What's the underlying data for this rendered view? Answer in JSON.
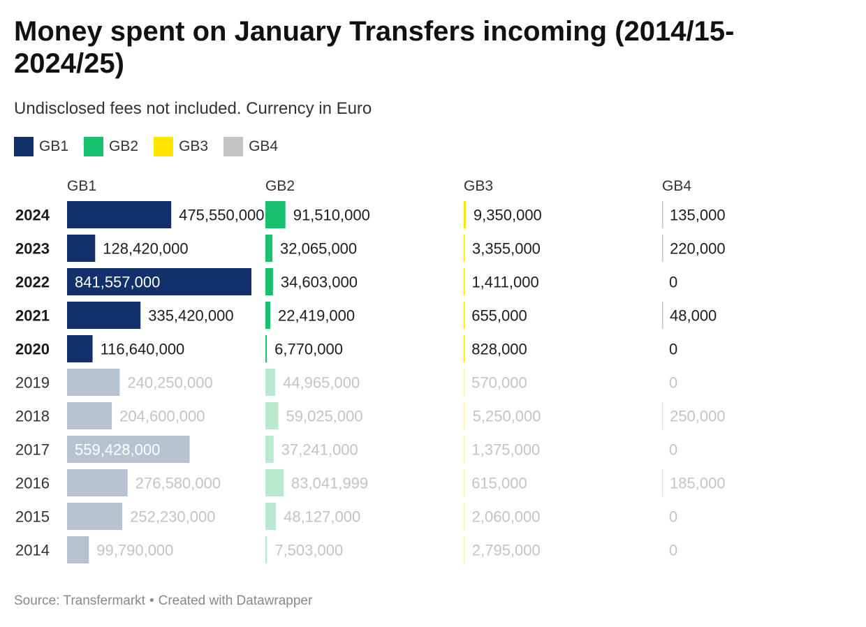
{
  "title": "Money spent on January Transfers incoming (2014/15-2024/25)",
  "subtitle": "Undisclosed fees not included. Currency in Euro",
  "footer": {
    "source": "Source: Transfermarkt",
    "separator": "•",
    "credit": "Created with Datawrapper"
  },
  "chart_data": {
    "type": "bar",
    "subtype": "split-bars",
    "title": "Money spent on January Transfers incoming (2014/15-2024/25)",
    "subtitle": "Undisclosed fees not included. Currency in Euro",
    "categories": [
      "2024",
      "2023",
      "2022",
      "2021",
      "2020",
      "2019",
      "2018",
      "2017",
      "2016",
      "2015",
      "2014"
    ],
    "highlighted_categories": [
      "2024",
      "2023",
      "2022",
      "2021",
      "2020"
    ],
    "series": [
      {
        "name": "GB1",
        "color": "#12306a",
        "muted_color": "#b8c3d1",
        "values": [
          475550000,
          128420000,
          841557000,
          335420000,
          116640000,
          240250000,
          204600000,
          559428000,
          276580000,
          252230000,
          99790000
        ],
        "labels": [
          "475,550,000",
          "128,420,000",
          "841,557,000",
          "335,420,000",
          "116,640,000",
          "240,250,000",
          "204,600,000",
          "559,428,000",
          "276,580,000",
          "252,230,000",
          "99,790,000"
        ]
      },
      {
        "name": "GB2",
        "color": "#18c16d",
        "muted_color": "#b9ead1",
        "values": [
          91510000,
          32065000,
          34603000,
          22419000,
          6770000,
          44965000,
          59025000,
          37241000,
          83041999,
          48127000,
          7503000
        ],
        "labels": [
          "91,510,000",
          "32,065,000",
          "34,603,000",
          "22,419,000",
          "6,770,000",
          "44,965,000",
          "59,025,000",
          "37,241,000",
          "83,041,999",
          "48,127,000",
          "7,503,000"
        ]
      },
      {
        "name": "GB3",
        "color": "#ffe400",
        "muted_color": "#fff4b0",
        "values": [
          9350000,
          3355000,
          1411000,
          655000,
          828000,
          570000,
          5250000,
          1375000,
          615000,
          2060000,
          2795000
        ],
        "labels": [
          "9,350,000",
          "3,355,000",
          "1,411,000",
          "655,000",
          "828,000",
          "570,000",
          "5,250,000",
          "1,375,000",
          "615,000",
          "2,060,000",
          "2,795,000"
        ]
      },
      {
        "name": "GB4",
        "color": "#c4c4c4",
        "muted_color": "#e3e3e3",
        "values": [
          135000,
          220000,
          0,
          48000,
          0,
          0,
          250000,
          0,
          185000,
          0,
          0
        ],
        "labels": [
          "135,000",
          "220,000",
          "0",
          "48,000",
          "0",
          "0",
          "250,000",
          "0",
          "185,000",
          "0",
          "0"
        ]
      }
    ],
    "legend": "top-left",
    "grid": false
  }
}
